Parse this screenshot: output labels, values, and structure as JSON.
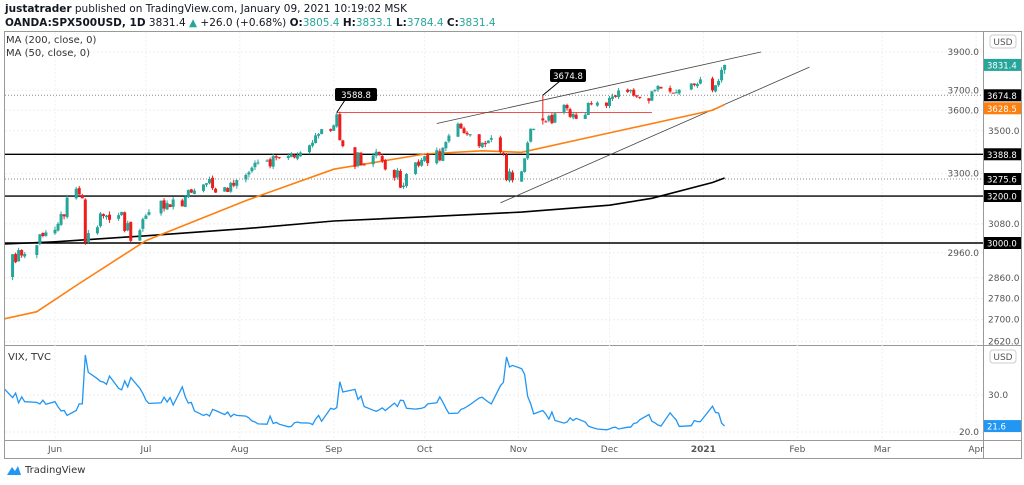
{
  "header": {
    "author": "justatrader",
    "published": "published on TradingView.com, January 09, 2021 10:19:02 MSK",
    "symbol": "OANDA:SPX500USD, 1D",
    "last": "3831.4",
    "change_arrow": "▲",
    "change": "+26.0 (+0.68%)",
    "o_label": "O:",
    "o": "3805.4",
    "h_label": "H:",
    "h": "3833.1",
    "l_label": "L:",
    "l": "3784.4",
    "c_label": "C:",
    "c": "3831.4"
  },
  "indicators": {
    "ma200": "MA (200, close, 0)",
    "ma50": "MA (50, close, 0)",
    "vix": "VIX, TVC"
  },
  "currency": "USD",
  "footer": {
    "brand": "TradingView"
  },
  "colors": {
    "up": "#26a69a",
    "down": "#ef1c1c",
    "ma50": "#ff7f0e",
    "ma200": "#000000",
    "vix": "#2196f3",
    "resistance": "#ef5350"
  },
  "chart_data": [
    {
      "type": "candlestick",
      "scale": "log",
      "grid": true,
      "x_ticks": [
        "Jun",
        "Jul",
        "Aug",
        "Sep",
        "Oct",
        "Nov",
        "Dec",
        "2021",
        "Feb",
        "Mar",
        "Apr"
      ],
      "y_ticks": [
        "3900.0",
        "3700.0",
        "3600.0",
        "3500.0",
        "3300.0",
        "3080.0",
        "2960.0",
        "2860.0",
        "2780.0",
        "2700.0",
        "2620.0"
      ],
      "ylim": [
        2620,
        3920
      ],
      "closes": {
        "2020-05": {
          "days": [
            14,
            15,
            18,
            19,
            20,
            21,
            22,
            26,
            27,
            28,
            29
          ],
          "close": [
            2852,
            2863,
            2954,
            2922,
            2971,
            2949,
            2955,
            2991,
            3036,
            3029,
            3044
          ]
        },
        "2020-06": {
          "days": [
            1,
            2,
            3,
            4,
            5,
            8,
            9,
            10,
            11,
            12,
            15,
            16,
            17,
            18,
            19,
            22,
            23,
            24,
            25,
            26,
            29,
            30
          ],
          "close": [
            3055,
            3080,
            3122,
            3112,
            3193,
            3232,
            3207,
            3190,
            3002,
            3041,
            3066,
            3124,
            3113,
            3115,
            3097,
            3117,
            3131,
            3050,
            3083,
            3009,
            3053,
            3100
          ]
        },
        "2020-07": {
          "days": [
            1,
            2,
            6,
            7,
            8,
            9,
            10,
            13,
            14,
            15,
            16,
            17,
            20,
            21,
            22,
            23,
            24,
            27,
            28,
            29,
            30,
            31
          ],
          "close": [
            3115,
            3130,
            3179,
            3145,
            3169,
            3152,
            3185,
            3155,
            3197,
            3226,
            3215,
            3224,
            3251,
            3257,
            3276,
            3235,
            3215,
            3239,
            3218,
            3258,
            3246,
            3271
          ]
        },
        "2020-08": {
          "days": [
            3,
            4,
            5,
            6,
            7,
            10,
            11,
            12,
            13,
            14,
            17,
            18,
            19,
            20,
            21,
            24,
            25,
            26,
            27,
            28,
            31
          ],
          "close": [
            3294,
            3306,
            3327,
            3349,
            3351,
            3360,
            3333,
            3380,
            3373,
            3372,
            3381,
            3389,
            3374,
            3385,
            3397,
            3431,
            3443,
            3478,
            3484,
            3508,
            3500
          ]
        },
        "2020-09": {
          "days": [
            1,
            2,
            3,
            4,
            8,
            9,
            10,
            11,
            14,
            15,
            16,
            17,
            18,
            21,
            22,
            23,
            24,
            25,
            28,
            29,
            30
          ],
          "close": [
            3526,
            3580,
            3455,
            3427,
            3331,
            3398,
            3339,
            3341,
            3383,
            3401,
            3385,
            3357,
            3319,
            3281,
            3315,
            3237,
            3246,
            3298,
            3351,
            3336,
            3363
          ]
        },
        "2020-10": {
          "days": [
            1,
            2,
            5,
            6,
            7,
            8,
            9,
            12,
            13,
            14,
            15,
            16,
            19,
            20,
            21,
            22,
            23,
            26,
            27,
            28,
            29,
            30
          ],
          "close": [
            3380,
            3348,
            3408,
            3361,
            3419,
            3446,
            3477,
            3534,
            3512,
            3489,
            3483,
            3484,
            3427,
            3443,
            3436,
            3453,
            3465,
            3401,
            3391,
            3271,
            3310,
            3270
          ]
        },
        "2020-11": {
          "days": [
            2,
            3,
            4,
            5,
            6,
            9,
            10,
            11,
            12,
            13,
            16,
            17,
            18,
            19,
            20,
            23,
            24,
            25,
            27,
            30
          ],
          "close": [
            3310,
            3370,
            3443,
            3510,
            3509,
            3550,
            3545,
            3572,
            3537,
            3585,
            3627,
            3610,
            3568,
            3582,
            3558,
            3578,
            3636,
            3629,
            3638,
            3622
          ]
        },
        "2020-12": {
          "days": [
            1,
            2,
            3,
            4,
            7,
            8,
            9,
            10,
            11,
            14,
            15,
            16,
            17,
            18,
            21,
            22,
            23,
            24,
            28,
            29,
            30,
            31
          ],
          "close": [
            3662,
            3669,
            3667,
            3699,
            3692,
            3702,
            3673,
            3668,
            3663,
            3647,
            3695,
            3702,
            3722,
            3709,
            3694,
            3687,
            3690,
            3703,
            3735,
            3727,
            3732,
            3756
          ]
        },
        "2021-01": {
          "days": [
            4,
            5,
            6,
            7,
            8
          ],
          "close": [
            3700,
            3726,
            3748,
            3805.4,
            3831.4
          ]
        }
      },
      "ma200": [
        [
          "2020-05-14",
          2995
        ],
        [
          "2020-06-01",
          3005
        ],
        [
          "2020-07-01",
          3030
        ],
        [
          "2020-08-03",
          3060
        ],
        [
          "2020-09-01",
          3092
        ],
        [
          "2020-10-01",
          3110
        ],
        [
          "2020-11-02",
          3130
        ],
        [
          "2020-12-01",
          3160
        ],
        [
          "2020-12-15",
          3190
        ],
        [
          "2021-01-04",
          3260
        ],
        [
          "2021-01-08",
          3280
        ]
      ],
      "ma50": [
        [
          "2020-05-14",
          2700
        ],
        [
          "2020-05-26",
          2730
        ],
        [
          "2020-06-08",
          2830
        ],
        [
          "2020-07-01",
          3010
        ],
        [
          "2020-08-03",
          3180
        ],
        [
          "2020-09-01",
          3320
        ],
        [
          "2020-10-01",
          3390
        ],
        [
          "2020-10-20",
          3405
        ],
        [
          "2020-11-02",
          3398
        ],
        [
          "2020-12-01",
          3490
        ],
        [
          "2021-01-04",
          3600
        ],
        [
          "2021-01-08",
          3628.5
        ]
      ],
      "levels": {
        "solid": [
          "3388.8",
          "3200.0",
          "3000.0"
        ],
        "dotted": [
          "3674.8",
          "3275.6"
        ],
        "last": "3831.4",
        "ma50_last": "3628.5"
      },
      "annotations": [
        "3588.8",
        "3674.8"
      ],
      "resistance": {
        "price": 3588.8,
        "from": "2020-09-02",
        "to": "2020-12-15"
      },
      "channel": {
        "upper": [
          [
            "2020-10-05",
            3535
          ],
          [
            "2021-01-20",
            3900
          ]
        ],
        "lower": [
          [
            "2020-10-26",
            3170
          ],
          [
            "2021-02-05",
            3820
          ]
        ]
      }
    },
    {
      "type": "line",
      "title": "VIX, TVC",
      "y_ticks": [
        "30.0",
        "20.0"
      ],
      "last": "21.6",
      "values": {
        "2020-05": [
          35.3,
          31.9,
          29.3,
          30.5,
          27.9,
          29.5,
          28.2,
          28.0,
          27.6,
          28.6,
          27.5
        ],
        "2020-06": [
          28.2,
          26.8,
          25.7,
          25.8,
          24.5,
          25.8,
          27.6,
          27.6,
          40.8,
          36.1,
          34.4,
          33.7,
          33.5,
          32.9,
          35.1,
          31.8,
          31.4,
          33.8,
          32.2,
          34.7,
          31.8,
          30.4
        ],
        "2020-07": [
          28.6,
          27.7,
          27.9,
          29.4,
          28.1,
          29.3,
          27.3,
          32.2,
          29.5,
          27.8,
          28.0,
          25.7,
          24.5,
          24.8,
          24.3,
          26.1,
          25.8,
          24.7,
          25.4,
          24.1,
          24.8,
          24.5
        ],
        "2020-08": [
          24.3,
          23.8,
          23.0,
          22.7,
          22.2,
          22.1,
          24.3,
          22.3,
          22.6,
          22.1,
          21.4,
          21.5,
          22.5,
          22.7,
          22.5,
          22.4,
          22.0,
          23.5,
          24.5,
          22.9,
          26.4
        ],
        "2020-09": [
          26.1,
          26.6,
          33.6,
          30.8,
          31.5,
          28.8,
          29.7,
          26.9,
          25.9,
          25.6,
          26.0,
          26.5,
          25.8,
          27.8,
          26.9,
          28.6,
          28.5,
          26.4,
          26.2,
          26.3,
          26.4
        ],
        "2020-10": [
          26.7,
          27.6,
          27.9,
          29.5,
          28.1,
          26.4,
          25.0,
          25.1,
          26.1,
          26.4,
          26.9,
          27.4,
          29.2,
          29.4,
          28.7,
          28.1,
          27.6,
          32.5,
          33.4,
          40.3,
          37.6,
          38.0
        ],
        "2020-11": [
          37.1,
          35.6,
          29.6,
          27.6,
          24.9,
          25.8,
          24.8,
          23.5,
          25.4,
          23.1,
          22.4,
          22.7,
          23.8,
          23.1,
          23.7,
          22.7,
          21.6,
          21.3,
          20.8,
          20.6
        ],
        "2020-12": [
          20.8,
          21.2,
          21.3,
          20.8,
          21.3,
          21.3,
          22.3,
          22.5,
          23.3,
          24.7,
          22.9,
          22.5,
          21.9,
          21.6,
          25.2,
          24.2,
          23.3,
          21.5,
          21.7,
          23.1,
          22.8,
          22.8
        ],
        "2021-01": [
          26.97,
          25.3,
          25.1,
          22.4,
          21.6
        ]
      }
    }
  ]
}
